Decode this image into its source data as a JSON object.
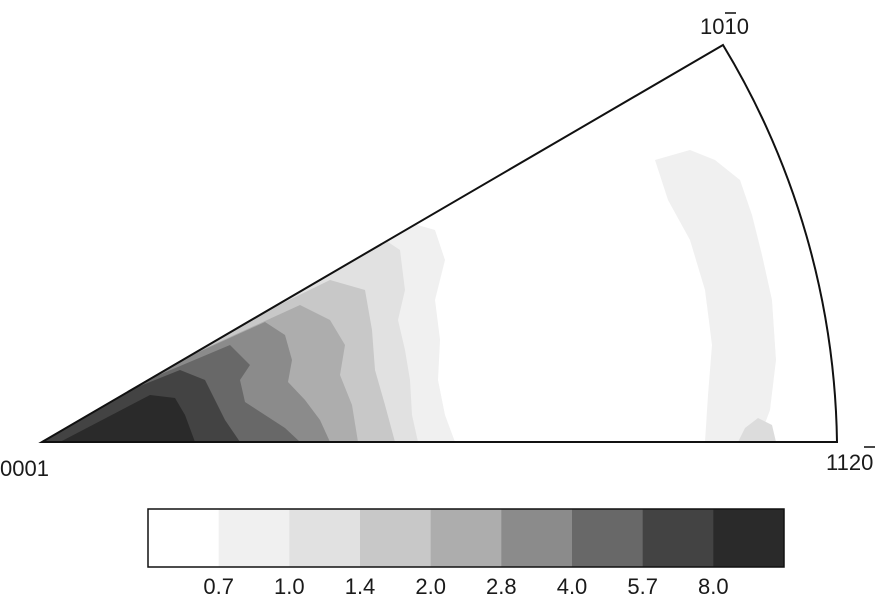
{
  "figure": {
    "poles": {
      "origin": "0001",
      "top_right": "10",
      "top_right_bar": "1",
      "top_right_end": "0",
      "bottom_right": "112",
      "bottom_right_bar": "0"
    }
  },
  "chart_data": {
    "type": "heatmap",
    "title": "",
    "legend": {
      "placement": "bottom",
      "colors": [
        "#ffffff",
        "#f0f0f0",
        "#e1e1e1",
        "#c8c8c8",
        "#adadad",
        "#8b8b8b",
        "#686868",
        "#434343",
        "#2a2a2a"
      ],
      "tick_labels": [
        "0.7",
        "1.0",
        "1.4",
        "2.0",
        "2.8",
        "4.0",
        "5.7",
        "8.0"
      ]
    }
  }
}
